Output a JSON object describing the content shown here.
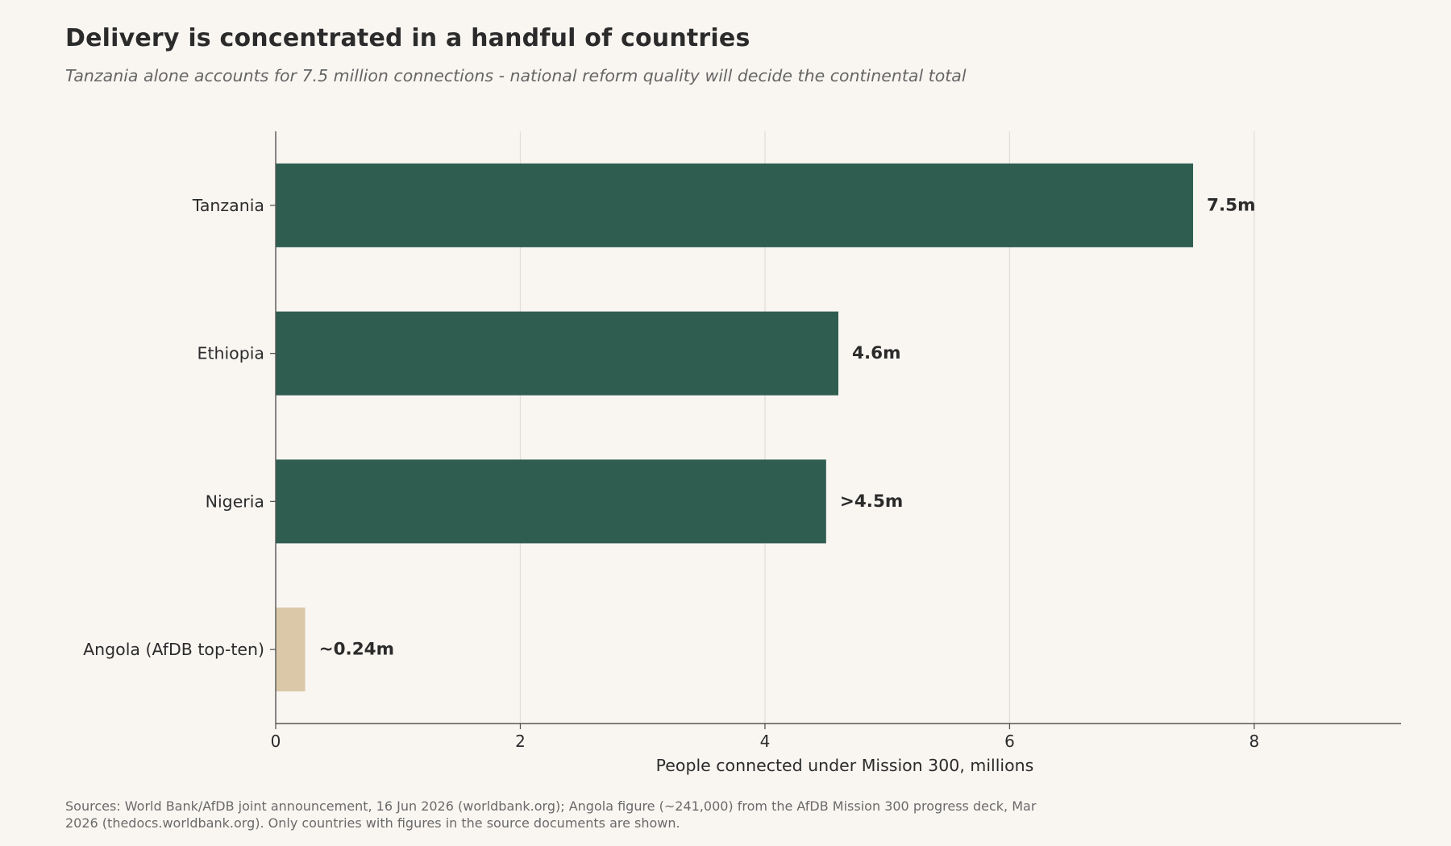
{
  "title": "Delivery is concentrated in a handful of countries",
  "subtitle": "Tanzania alone accounts for 7.5 million connections - national reform quality will decide the continental total",
  "source": "Sources: World Bank/AfDB joint announcement, 16 Jun 2026 (worldbank.org); Angola figure (~241,000) from the AfDB Mission 300 progress deck, Mar 2026 (thedocs.worldbank.org). Only countries with figures in the source documents are shown.",
  "colors": {
    "primary_bar": "#2f5e51",
    "highlight_bar": "#dbc8a8",
    "background": "#f9f6f2",
    "grid": "#e2ded8",
    "axis": "#555555"
  },
  "chart_data": {
    "type": "bar",
    "orientation": "horizontal",
    "categories": [
      "Tanzania",
      "Ethiopia",
      "Nigeria",
      "Angola (AfDB top-ten)"
    ],
    "values": [
      7.5,
      4.6,
      4.5,
      0.241
    ],
    "data_labels": [
      "7.5m",
      "4.6m",
      ">4.5m",
      "~0.24m"
    ],
    "bar_colors": [
      "#2f5e51",
      "#2f5e51",
      "#2f5e51",
      "#dbc8a8"
    ],
    "xlabel": "People connected under Mission 300, millions",
    "ylabel": "",
    "xlim": [
      0,
      9.2
    ],
    "xticks": [
      0,
      2,
      4,
      6,
      8
    ],
    "grid": "vertical"
  }
}
